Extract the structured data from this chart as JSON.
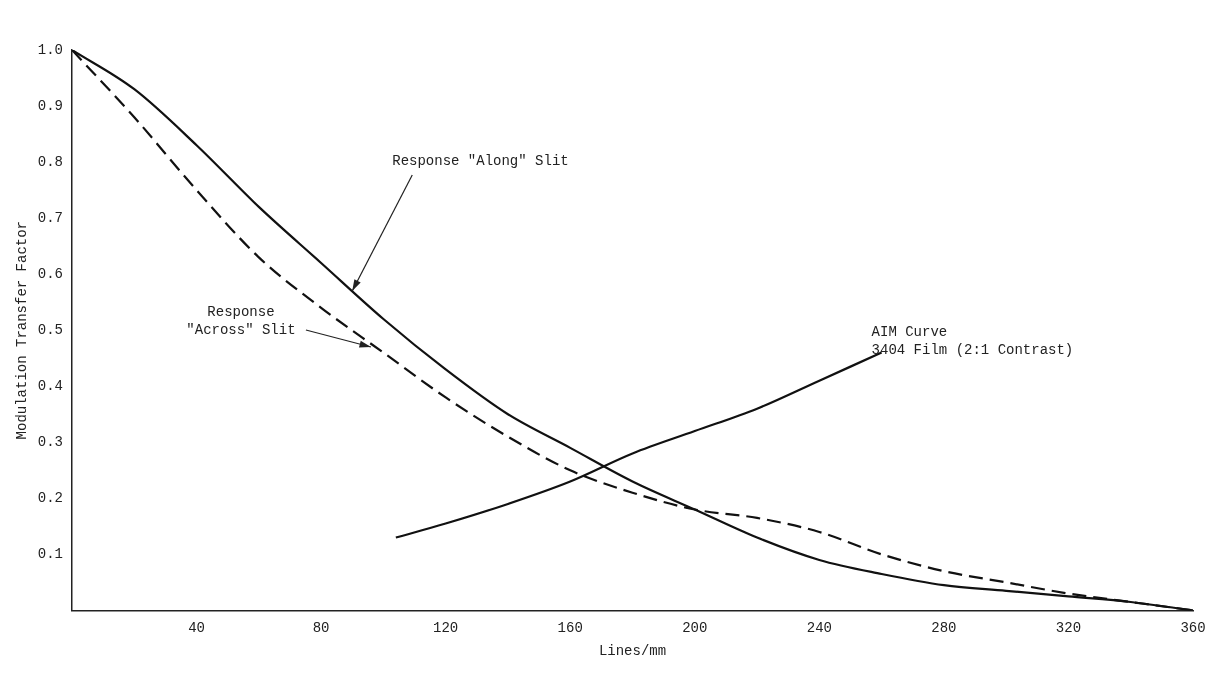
{
  "chart_data": {
    "type": "line",
    "xlabel": "Lines/mm",
    "ylabel": "Modulation Transfer Factor",
    "xlim": [
      0,
      360
    ],
    "xticks": [
      40,
      80,
      120,
      160,
      200,
      240,
      280,
      320,
      360
    ],
    "ylim": [
      0,
      1.0
    ],
    "yticks": [
      0.1,
      0.2,
      0.3,
      0.4,
      0.5,
      0.6,
      0.7,
      0.8,
      0.9,
      {
        "value": 1.0,
        "label": "1.0"
      }
    ],
    "grid": false,
    "legend": false,
    "marker": "none",
    "series": [
      {
        "color": "#111111",
        "line_style": "solid",
        "x": [
          0,
          20,
          40,
          60,
          80,
          100,
          120,
          140,
          160,
          180,
          200,
          220,
          240,
          260,
          280,
          300,
          320,
          340,
          360
        ],
        "values": [
          1.0,
          0.93,
          0.83,
          0.72,
          0.62,
          0.52,
          0.43,
          0.35,
          0.29,
          0.23,
          0.18,
          0.13,
          0.09,
          0.065,
          0.045,
          0.035,
          0.025,
          0.015,
          0.0
        ]
      },
      {
        "color": "#111111",
        "line_style": "dashed",
        "x": [
          0,
          20,
          40,
          60,
          80,
          100,
          120,
          140,
          160,
          180,
          200,
          220,
          240,
          260,
          280,
          300,
          320,
          340,
          360
        ],
        "values": [
          1.0,
          0.88,
          0.75,
          0.63,
          0.54,
          0.46,
          0.38,
          0.31,
          0.25,
          0.21,
          0.18,
          0.165,
          0.14,
          0.1,
          0.07,
          0.05,
          0.03,
          0.015,
          0.0
        ]
      },
      {
        "color": "#111111",
        "line_style": "solid",
        "x": [
          104,
          120,
          140,
          160,
          180,
          200,
          220,
          240,
          260
        ],
        "values": [
          0.13,
          0.155,
          0.19,
          0.23,
          0.28,
          0.32,
          0.36,
          0.41,
          0.46
        ]
      }
    ],
    "annotations": [
      {
        "text": "Response \"Along\" Slit",
        "x": 90,
        "y": 0.57
      },
      {
        "text": "Response\n\"Across\" Slit",
        "x": 96,
        "y": 0.47
      },
      {
        "text": "AIM Curve\n3404 Film (2:1 Contrast)",
        "x": 260,
        "y": 0.46
      }
    ]
  }
}
